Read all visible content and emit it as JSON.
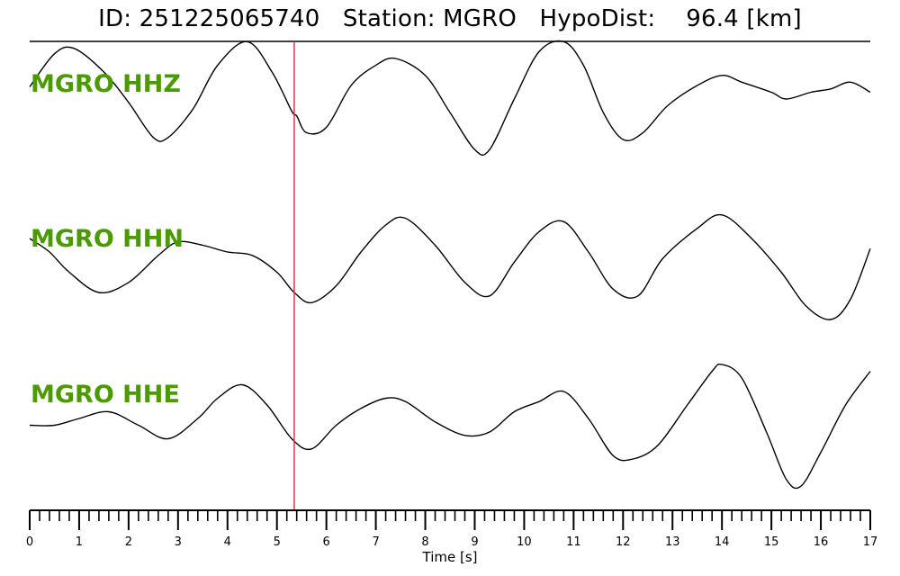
{
  "header": {
    "title": "ID: 251225065740   Station: MGRO   HypoDist:    96.4 [km]"
  },
  "chart_data": {
    "type": "line",
    "xlabel": "Time [s]",
    "xlim": [
      0,
      17
    ],
    "xticks": [
      "0",
      "1",
      "2",
      "3",
      "4",
      "5",
      "6",
      "7",
      "8",
      "9",
      "10",
      "11",
      "12",
      "13",
      "14",
      "15",
      "16",
      "17"
    ],
    "pick_time_s": 5.35,
    "pick_color": "#e8323c",
    "trace_color": "#000000",
    "label_color": "#4a9a00",
    "series": [
      {
        "name": "MGRO HHZ",
        "x": [
          0,
          0.5,
          0.9,
          1.5,
          2.0,
          2.5,
          2.8,
          3.3,
          3.8,
          4.4,
          4.9,
          5.3,
          5.4,
          5.6,
          6.0,
          6.5,
          7.0,
          7.4,
          8.0,
          8.5,
          9.0,
          9.3,
          9.8,
          10.3,
          10.8,
          11.2,
          11.6,
          12.0,
          12.4,
          12.9,
          13.5,
          14.0,
          14.4,
          15.0,
          15.3,
          15.8,
          16.2,
          16.6,
          17.0
        ],
        "y": [
          0.38,
          0.87,
          0.95,
          0.6,
          0.15,
          -0.37,
          -0.37,
          0.05,
          0.7,
          1.05,
          0.6,
          0.02,
          -0.05,
          -0.3,
          -0.22,
          0.4,
          0.7,
          0.8,
          0.55,
          0.0,
          -0.55,
          -0.55,
          0.2,
          0.9,
          1.05,
          0.7,
          0.0,
          -0.4,
          -0.3,
          0.1,
          0.4,
          0.55,
          0.45,
          0.3,
          0.2,
          0.3,
          0.35,
          0.45,
          0.3
        ]
      },
      {
        "name": "MGRO HHN",
        "x": [
          0,
          0.4,
          0.8,
          1.4,
          2.0,
          2.6,
          3.0,
          3.5,
          4.0,
          4.5,
          5.0,
          5.35,
          5.7,
          6.2,
          6.7,
          7.2,
          7.6,
          8.2,
          8.8,
          9.3,
          9.8,
          10.3,
          10.8,
          11.3,
          11.8,
          12.3,
          12.8,
          13.5,
          14.0,
          14.6,
          15.2,
          15.7,
          16.2,
          16.6,
          17.0
        ],
        "y": [
          0.6,
          0.4,
          0.1,
          -0.2,
          -0.05,
          0.35,
          0.55,
          0.5,
          0.4,
          0.35,
          0.1,
          -0.2,
          -0.35,
          -0.1,
          0.4,
          0.8,
          0.9,
          0.5,
          -0.05,
          -0.25,
          0.25,
          0.7,
          0.85,
          0.4,
          -0.15,
          -0.25,
          0.3,
          0.75,
          0.95,
          0.6,
          0.1,
          -0.4,
          -0.6,
          -0.3,
          0.45
        ]
      },
      {
        "name": "MGRO HHE",
        "x": [
          0,
          0.5,
          1.0,
          1.6,
          2.2,
          2.8,
          3.4,
          3.8,
          4.3,
          4.8,
          5.3,
          5.7,
          6.2,
          6.7,
          7.2,
          7.6,
          8.2,
          8.8,
          9.3,
          9.8,
          10.3,
          10.8,
          11.3,
          11.8,
          12.2,
          12.7,
          13.3,
          13.8,
          14.0,
          14.4,
          14.9,
          15.3,
          15.6,
          16.0,
          16.5,
          17.0
        ],
        "y": [
          0.1,
          0.1,
          0.2,
          0.3,
          0.1,
          -0.1,
          0.2,
          0.5,
          0.7,
          0.4,
          -0.1,
          -0.25,
          0.1,
          0.35,
          0.5,
          0.45,
          0.15,
          -0.05,
          0.0,
          0.3,
          0.45,
          0.6,
          0.2,
          -0.35,
          -0.4,
          -0.2,
          0.4,
          0.9,
          1.0,
          0.8,
          0.0,
          -0.7,
          -0.8,
          -0.3,
          0.4,
          0.9
        ]
      }
    ]
  }
}
